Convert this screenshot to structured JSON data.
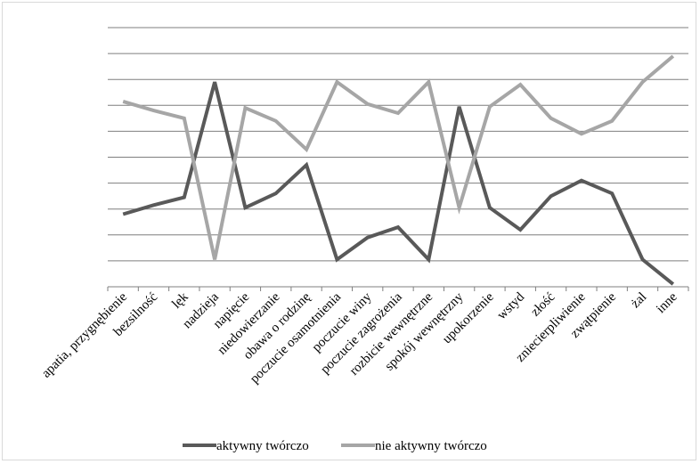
{
  "chart_data": {
    "type": "line",
    "categories": [
      "apatia, przygnębienie",
      "bezsilność",
      "lęk",
      "nadzieja",
      "napięcie",
      "niedowierzanie",
      "obawa o rodzinę",
      "poczucie osamotnienia",
      "poczucie winy",
      "poczucie zagrożenia",
      "rozbicie wewnętrzne",
      "spokój wewnętrzny",
      "upokorzenie",
      "wstyd",
      "złość",
      "zniecierpliwienie",
      "zwątpienie",
      "żal",
      "inne"
    ],
    "series": [
      {
        "name": "aktywny twórczo",
        "color": "#595959",
        "values": [
          2.8,
          3.15,
          3.45,
          7.9,
          3.05,
          3.6,
          4.7,
          1.05,
          1.9,
          2.3,
          1.05,
          6.95,
          3.05,
          2.2,
          3.5,
          4.1,
          3.6,
          1.05,
          0.1
        ]
      },
      {
        "name": "nie aktywny twórczo",
        "color": "#a6a6a6",
        "values": [
          7.15,
          6.8,
          6.5,
          1.05,
          6.9,
          6.4,
          5.3,
          7.9,
          7.05,
          6.7,
          7.9,
          3.05,
          6.95,
          7.8,
          6.5,
          5.9,
          6.4,
          7.9,
          8.9
        ]
      }
    ],
    "ylim": [
      0,
      10
    ],
    "grid": true,
    "legend": "bottom",
    "title": "",
    "xlabel": "",
    "ylabel": ""
  }
}
